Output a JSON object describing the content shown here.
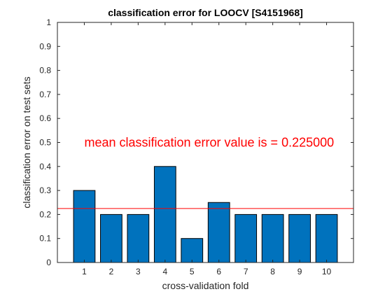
{
  "colors": {
    "bar_fill": "#0072BD",
    "bar_edge": "#000000",
    "mean_line": "#FF0000",
    "annotation": "#FF0000",
    "axes": "#262626"
  },
  "chart_data": {
    "type": "bar",
    "title": "classification error for LOOCV [S4151968]",
    "xlabel": "cross-validation fold",
    "ylabel": "classification error on test sets",
    "categories": [
      "1",
      "2",
      "3",
      "4",
      "5",
      "6",
      "7",
      "8",
      "9",
      "10"
    ],
    "values": [
      0.3,
      0.2,
      0.2,
      0.4,
      0.1,
      0.25,
      0.2,
      0.2,
      0.2,
      0.2
    ],
    "xlim": [
      0,
      11
    ],
    "ylim": [
      0,
      1
    ],
    "yticks": [
      "0",
      "0.1",
      "0.2",
      "0.3",
      "0.4",
      "0.5",
      "0.6",
      "0.7",
      "0.8",
      "0.9",
      "1"
    ],
    "mean_value": 0.225,
    "annotation": "mean classification error value is = 0.225000",
    "annotation_pos": {
      "x": 1.0,
      "y": 0.5
    },
    "grid": false,
    "legend": "none"
  }
}
